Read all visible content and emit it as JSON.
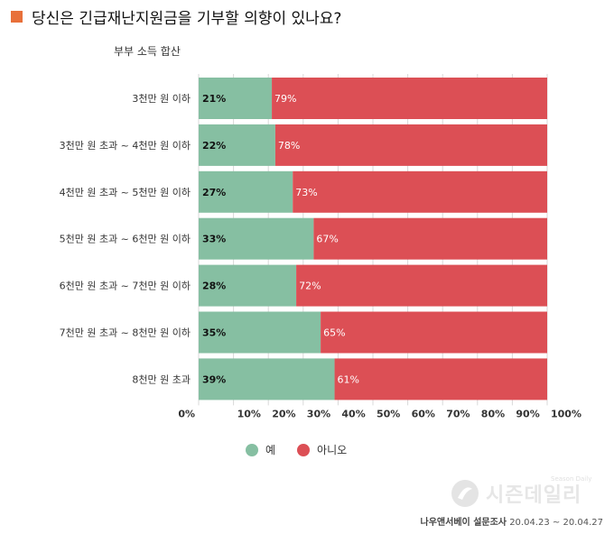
{
  "title": "당신은 긴급재난지원금을 기부할 의향이 있나요?",
  "subtitle": "부부 소득 합산",
  "colors": {
    "yes": "#86bfa2",
    "no": "#dc4f55",
    "title_marker": "#e8703a"
  },
  "chart_data": {
    "type": "bar",
    "orientation": "horizontal",
    "stacked": true,
    "categories": [
      "3천만 원 이하",
      "3천만 원 초과 ~ 4천만 원 이하",
      "4천만 원 초과 ~ 5천만 원 이하",
      "5천만 원 초과 ~ 6천만 원 이하",
      "6천만 원 초과 ~ 7천만 원 이하",
      "7천만 원 초과 ~ 8천만 원 이하",
      "8천만 원 초과"
    ],
    "series": [
      {
        "name": "예",
        "values": [
          21,
          22,
          27,
          33,
          28,
          35,
          39
        ]
      },
      {
        "name": "아니오",
        "values": [
          79,
          78,
          73,
          67,
          72,
          65,
          61
        ]
      }
    ],
    "xlim": [
      0,
      100
    ],
    "x_ticks": [
      "0%",
      "10%",
      "20%",
      "30%",
      "40%",
      "50%",
      "60%",
      "70%",
      "80%",
      "90%",
      "100%"
    ],
    "value_suffix": "%",
    "grid": true,
    "legend_position": "bottom"
  },
  "legend": {
    "yes_label": "예",
    "no_label": "아니오"
  },
  "logo": {
    "text": "시즌데일리",
    "sub": "Season Daily"
  },
  "source": {
    "org": "나우앤서베이 설문조사",
    "dates": "20.04.23 ~ 20.04.27"
  }
}
